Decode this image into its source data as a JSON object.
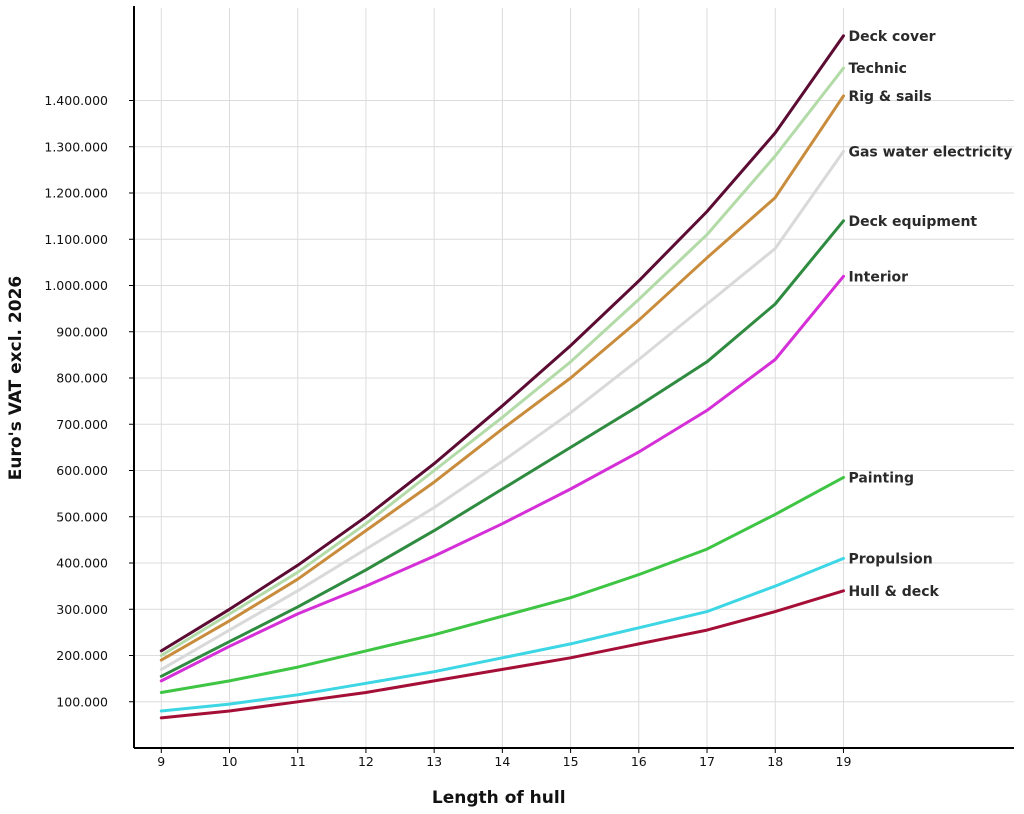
{
  "chart_data": {
    "type": "line",
    "xlabel": "Length of hull",
    "ylabel": "Euro's VAT excl. 2026",
    "x": [
      9,
      10,
      11,
      12,
      13,
      14,
      15,
      16,
      17,
      18,
      19
    ],
    "xlim": [
      8.6,
      21.5
    ],
    "ylim": [
      0,
      1600000
    ],
    "x_ticks": [
      {
        "value": 9,
        "label": "9"
      },
      {
        "value": 10,
        "label": "10"
      },
      {
        "value": 11,
        "label": "11"
      },
      {
        "value": 12,
        "label": "12"
      },
      {
        "value": 13,
        "label": "13"
      },
      {
        "value": 14,
        "label": "14"
      },
      {
        "value": 15,
        "label": "15"
      },
      {
        "value": 16,
        "label": "16"
      },
      {
        "value": 17,
        "label": "17"
      },
      {
        "value": 18,
        "label": "18"
      },
      {
        "value": 19,
        "label": "19"
      }
    ],
    "y_ticks": [
      {
        "value": 100000,
        "label": "100.000"
      },
      {
        "value": 200000,
        "label": "200.000"
      },
      {
        "value": 300000,
        "label": "300.000"
      },
      {
        "value": 400000,
        "label": "400.000"
      },
      {
        "value": 500000,
        "label": "500.000"
      },
      {
        "value": 600000,
        "label": "600.000"
      },
      {
        "value": 700000,
        "label": "700.000"
      },
      {
        "value": 800000,
        "label": "800.000"
      },
      {
        "value": 900000,
        "label": "900.000"
      },
      {
        "value": 1000000,
        "label": "1.000.000"
      },
      {
        "value": 1100000,
        "label": "1.100.000"
      },
      {
        "value": 1200000,
        "label": "1.200.000"
      },
      {
        "value": 1300000,
        "label": "1.300.000"
      },
      {
        "value": 1400000,
        "label": "1.400.000"
      }
    ],
    "grid": true,
    "legend": "inline-labels-right",
    "series": [
      {
        "name": "Hull & deck",
        "color": "#a50f37",
        "values": [
          65000,
          80000,
          100000,
          120000,
          145000,
          170000,
          195000,
          225000,
          255000,
          295000,
          340000
        ]
      },
      {
        "name": "Propulsion",
        "color": "#3dd6e4",
        "values": [
          80000,
          95000,
          115000,
          140000,
          165000,
          195000,
          225000,
          260000,
          295000,
          350000,
          410000
        ]
      },
      {
        "name": "Painting",
        "color": "#3ec543",
        "values": [
          120000,
          145000,
          175000,
          210000,
          245000,
          285000,
          325000,
          375000,
          430000,
          505000,
          585000
        ]
      },
      {
        "name": "Interior",
        "color": "#d52fd8",
        "values": [
          145000,
          220000,
          290000,
          350000,
          415000,
          485000,
          560000,
          640000,
          730000,
          840000,
          1020000
        ]
      },
      {
        "name": "Deck equipment",
        "color": "#2e8b3f",
        "values": [
          155000,
          230000,
          305000,
          385000,
          470000,
          560000,
          650000,
          740000,
          835000,
          960000,
          1140000
        ]
      },
      {
        "name": "Gas water electricity",
        "color": "#d9d9d9",
        "values": [
          170000,
          255000,
          340000,
          430000,
          520000,
          620000,
          725000,
          840000,
          960000,
          1080000,
          1290000
        ]
      },
      {
        "name": "Rig & sails",
        "color": "#c98c3c",
        "values": [
          190000,
          275000,
          365000,
          470000,
          575000,
          690000,
          800000,
          925000,
          1060000,
          1190000,
          1410000
        ]
      },
      {
        "name": "Technic",
        "color": "#b3dba8",
        "values": [
          200000,
          290000,
          380000,
          485000,
          600000,
          715000,
          835000,
          970000,
          1110000,
          1280000,
          1470000
        ]
      },
      {
        "name": "Deck cover",
        "color": "#5c0b33",
        "values": [
          210000,
          300000,
          395000,
          500000,
          615000,
          740000,
          870000,
          1010000,
          1160000,
          1330000,
          1540000
        ]
      }
    ]
  }
}
